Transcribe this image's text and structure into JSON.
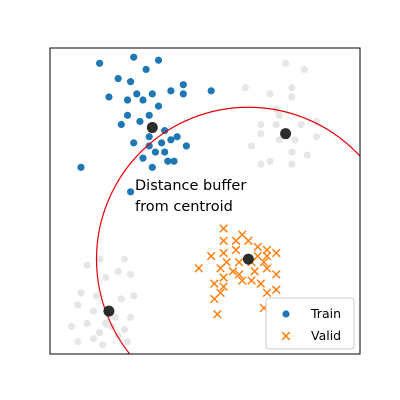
{
  "chart_data": {
    "type": "scatter",
    "xlim": [
      0,
      10
    ],
    "ylim": [
      0,
      10
    ],
    "grid": false,
    "ticks": false,
    "legend_placement": "bottom-right",
    "annotation": [
      "Distance buffer",
      "from centroid"
    ],
    "colors": {
      "train": "#1f77b4",
      "valid": "#ff7f0e",
      "background": "#c8c8c8",
      "centroid": "#222222",
      "buffer": "#e8000b"
    },
    "buffer_circle": {
      "center": [
        6.4,
        3.1
      ],
      "radius": 4.9
    },
    "centroids": [
      {
        "x": 3.3,
        "y": 7.4
      },
      {
        "x": 7.6,
        "y": 7.2
      },
      {
        "x": 6.4,
        "y": 3.1
      },
      {
        "x": 1.9,
        "y": 1.4
      }
    ],
    "series": [
      {
        "name": "Train",
        "marker": "o",
        "points": [
          [
            1.6,
            9.5
          ],
          [
            2.7,
            9.7
          ],
          [
            3.5,
            9.6
          ],
          [
            2.2,
            9.0
          ],
          [
            3.1,
            9.3
          ],
          [
            2.6,
            8.9
          ],
          [
            1.9,
            8.4
          ],
          [
            2.5,
            8.3
          ],
          [
            3.0,
            8.3
          ],
          [
            3.3,
            8.5
          ],
          [
            3.9,
            8.6
          ],
          [
            4.3,
            8.5
          ],
          [
            4.3,
            8.8
          ],
          [
            5.2,
            8.6
          ],
          [
            2.8,
            8.5
          ],
          [
            3.5,
            8.1
          ],
          [
            3.2,
            7.8
          ],
          [
            2.5,
            7.8
          ],
          [
            2.3,
            7.5
          ],
          [
            3.7,
            7.3
          ],
          [
            4.1,
            7.1
          ],
          [
            2.7,
            6.9
          ],
          [
            3.2,
            6.8
          ],
          [
            3.6,
            6.9
          ],
          [
            4.4,
            6.8
          ],
          [
            3.4,
            6.6
          ],
          [
            3.0,
            6.4
          ],
          [
            3.7,
            6.6
          ],
          [
            3.8,
            6.3
          ],
          [
            4.0,
            6.3
          ],
          [
            3.3,
            6.1
          ],
          [
            1.0,
            6.1
          ],
          [
            2.6,
            5.3
          ],
          [
            3.2,
            7.1
          ],
          [
            3.9,
            7.0
          ],
          [
            2.9,
            7.6
          ]
        ]
      },
      {
        "name": "Valid",
        "marker": "x",
        "points": [
          [
            5.6,
            4.1
          ],
          [
            5.6,
            3.7
          ],
          [
            6.0,
            3.7
          ],
          [
            6.4,
            3.7
          ],
          [
            6.7,
            3.5
          ],
          [
            7.0,
            3.4
          ],
          [
            7.3,
            3.3
          ],
          [
            5.2,
            3.2
          ],
          [
            5.6,
            3.3
          ],
          [
            6.0,
            3.4
          ],
          [
            5.7,
            3.0
          ],
          [
            6.1,
            3.0
          ],
          [
            6.7,
            3.2
          ],
          [
            7.0,
            3.2
          ],
          [
            6.9,
            3.0
          ],
          [
            5.5,
            2.8
          ],
          [
            5.9,
            2.7
          ],
          [
            6.6,
            2.7
          ],
          [
            7.0,
            2.8
          ],
          [
            7.3,
            2.6
          ],
          [
            4.8,
            2.8
          ],
          [
            5.6,
            2.5
          ],
          [
            6.2,
            2.4
          ],
          [
            6.5,
            2.4
          ],
          [
            6.8,
            2.3
          ],
          [
            7.3,
            2.1
          ],
          [
            5.3,
            2.3
          ],
          [
            5.6,
            2.2
          ],
          [
            5.5,
            2.0
          ],
          [
            5.3,
            1.8
          ],
          [
            7.0,
            2.0
          ],
          [
            5.4,
            1.3
          ],
          [
            6.9,
            1.5
          ],
          [
            6.1,
            2.6
          ],
          [
            6.2,
            3.9
          ],
          [
            6.5,
            3.0
          ]
        ]
      },
      {
        "marker": "o",
        "points": [
          [
            6.3,
            8.7
          ],
          [
            7.1,
            8.5
          ],
          [
            7.8,
            8.4
          ],
          [
            7.8,
            8.7
          ],
          [
            7.4,
            7.8
          ],
          [
            6.8,
            7.5
          ],
          [
            7.3,
            7.5
          ],
          [
            8.1,
            7.5
          ],
          [
            8.6,
            7.6
          ],
          [
            6.8,
            7.2
          ],
          [
            7.4,
            7.0
          ],
          [
            7.9,
            7.0
          ],
          [
            8.6,
            7.1
          ],
          [
            6.5,
            6.8
          ],
          [
            7.8,
            6.6
          ],
          [
            8.3,
            6.5
          ],
          [
            7.1,
            6.3
          ],
          [
            6.8,
            6.2
          ],
          [
            7.8,
            6.2
          ],
          [
            7.3,
            8.0
          ],
          [
            8.2,
            9.3
          ],
          [
            7.6,
            9.5
          ],
          [
            1.6,
            3.1
          ],
          [
            1.2,
            2.9
          ],
          [
            2.4,
            3.1
          ],
          [
            2.2,
            2.7
          ],
          [
            1.8,
            2.5
          ],
          [
            2.6,
            2.6
          ],
          [
            1.0,
            2.0
          ],
          [
            1.5,
            1.9
          ],
          [
            2.3,
            1.8
          ],
          [
            2.7,
            1.9
          ],
          [
            0.9,
            1.6
          ],
          [
            1.4,
            1.4
          ],
          [
            2.1,
            1.2
          ],
          [
            2.6,
            1.2
          ],
          [
            1.2,
            1.0
          ],
          [
            1.8,
            1.0
          ],
          [
            2.0,
            0.9
          ],
          [
            2.4,
            0.8
          ],
          [
            1.6,
            0.7
          ],
          [
            2.2,
            0.6
          ],
          [
            1.4,
            0.5
          ],
          [
            0.7,
            0.9
          ],
          [
            0.9,
            0.4
          ],
          [
            1.7,
            0.3
          ],
          [
            2.5,
            0.4
          ]
        ]
      }
    ]
  }
}
